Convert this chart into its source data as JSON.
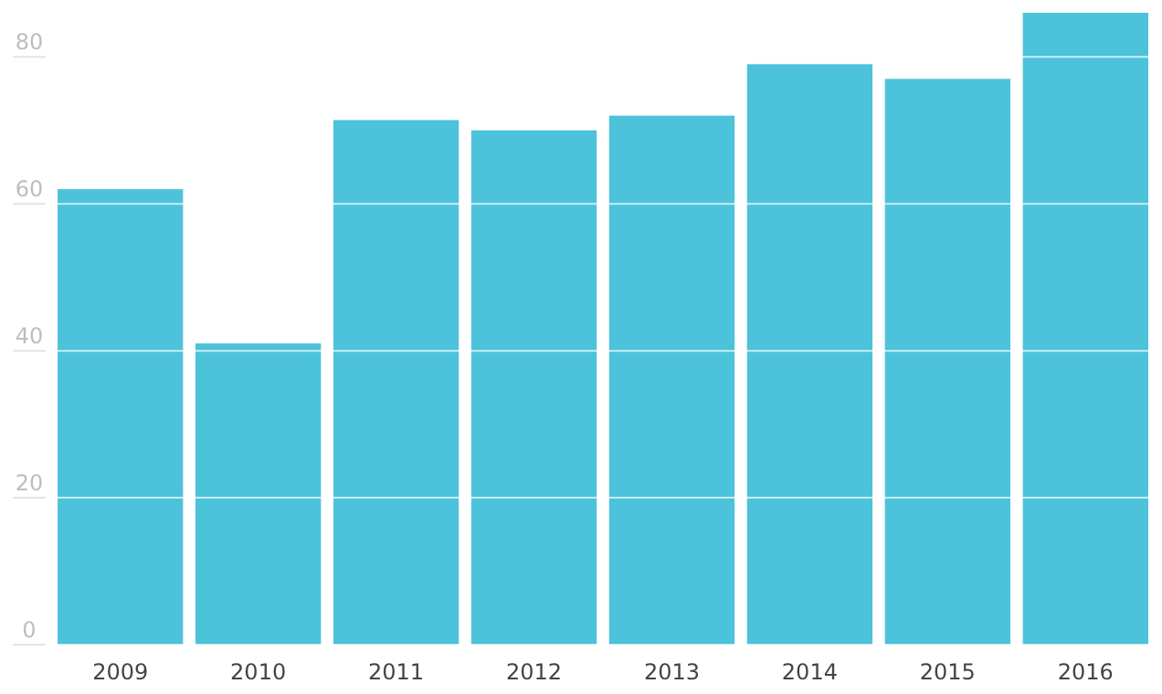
{
  "chart_data": {
    "type": "bar",
    "categories": [
      "2009",
      "2010",
      "2011",
      "2012",
      "2013",
      "2014",
      "2015",
      "2016"
    ],
    "values": [
      62,
      41,
      71.4,
      70,
      72,
      79,
      77,
      86
    ],
    "color": "#4cc3da",
    "ylim": [
      0,
      86
    ],
    "yticks": [
      0,
      20,
      40,
      60,
      80
    ],
    "grid": "y"
  }
}
